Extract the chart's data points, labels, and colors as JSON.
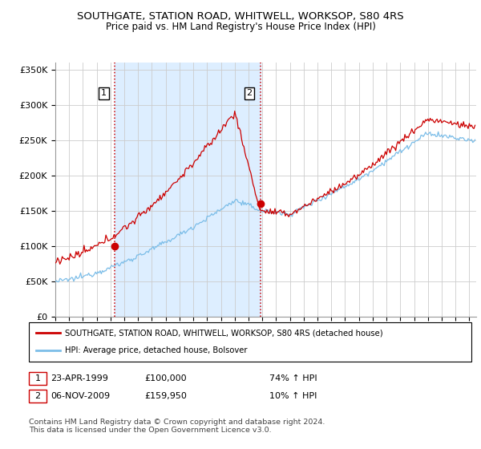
{
  "title": "SOUTHGATE, STATION ROAD, WHITWELL, WORKSOP, S80 4RS",
  "subtitle": "Price paid vs. HM Land Registry's House Price Index (HPI)",
  "ylabel_ticks": [
    "£0",
    "£50K",
    "£100K",
    "£150K",
    "£200K",
    "£250K",
    "£300K",
    "£350K"
  ],
  "ytick_values": [
    0,
    50000,
    100000,
    150000,
    200000,
    250000,
    300000,
    350000
  ],
  "ylim": [
    0,
    360000
  ],
  "sale1_x": 1999.3,
  "sale1_price": 100000,
  "sale1_date": "23-APR-1999",
  "sale1_label": "74% ↑ HPI",
  "sale2_x": 2009.85,
  "sale2_price": 159950,
  "sale2_date": "06-NOV-2009",
  "sale2_label": "10% ↑ HPI",
  "hpi_line_color": "#7bbde8",
  "price_line_color": "#cc0000",
  "vline_color": "#cc0000",
  "shade_color": "#ddeeff",
  "legend_house": "SOUTHGATE, STATION ROAD, WHITWELL, WORKSOP, S80 4RS (detached house)",
  "legend_hpi": "HPI: Average price, detached house, Bolsover",
  "footnote": "Contains HM Land Registry data © Crown copyright and database right 2024.\nThis data is licensed under the Open Government Licence v3.0.",
  "xstart": 1995,
  "xend": 2025.5
}
